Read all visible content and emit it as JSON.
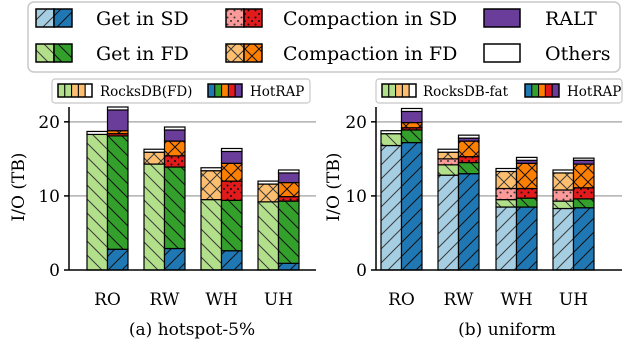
{
  "legend": {
    "items": [
      {
        "label": "Get in SD",
        "component": "get_sd"
      },
      {
        "label": "Compaction in SD",
        "component": "comp_sd"
      },
      {
        "label": "RALT",
        "component": "ralt"
      },
      {
        "label": "Get in FD",
        "component": "get_fd"
      },
      {
        "label": "Compaction in FD",
        "component": "comp_fd"
      },
      {
        "label": "Others",
        "component": "others"
      }
    ]
  },
  "colors": {
    "get_sd_light": "#a6cee3",
    "get_sd_dark": "#1f78b4",
    "get_fd_light": "#b2df8a",
    "get_fd_dark": "#33a02c",
    "comp_sd_light": "#fb9a99",
    "comp_sd_dark": "#e31a1c",
    "comp_fd_light": "#fdbf6f",
    "comp_fd_dark": "#ff7f00",
    "ralt": "#6a3d9a",
    "others": "#ffffff",
    "grid": "#b0b0b0"
  },
  "chart_data": [
    {
      "type": "bar",
      "subtitle": "(a) hotspot-5%",
      "ylabel": "I/O (TB)",
      "ylim": [
        0,
        22
      ],
      "yticks": [
        0,
        10,
        20
      ],
      "grid": true,
      "categories": [
        "RO",
        "RW",
        "WH",
        "UH"
      ],
      "legend": [
        {
          "label": "RocksDB(FD)",
          "shade": "light"
        },
        {
          "label": "HotRAP",
          "shade": "dark"
        }
      ],
      "series": [
        {
          "name": "RocksDB(FD)",
          "shade": "light",
          "stacks": [
            {
              "get_sd": 0,
              "get_fd": 18.3,
              "comp_sd": 0,
              "comp_fd": 0,
              "ralt": 0,
              "others": 0.4
            },
            {
              "get_sd": 0,
              "get_fd": 14.3,
              "comp_sd": 0,
              "comp_fd": 1.6,
              "ralt": 0,
              "others": 0.4
            },
            {
              "get_sd": 0,
              "get_fd": 9.5,
              "comp_sd": 0,
              "comp_fd": 3.9,
              "ralt": 0,
              "others": 0.4
            },
            {
              "get_sd": 0,
              "get_fd": 9.2,
              "comp_sd": 0,
              "comp_fd": 2.4,
              "ralt": 0,
              "others": 0.4
            }
          ]
        },
        {
          "name": "HotRAP",
          "shade": "dark",
          "stacks": [
            {
              "get_sd": 2.8,
              "get_fd": 15.3,
              "comp_sd": 0.3,
              "comp_fd": 0.4,
              "ralt": 2.8,
              "others": 0.4
            },
            {
              "get_sd": 2.9,
              "get_fd": 11.0,
              "comp_sd": 1.5,
              "comp_fd": 2.0,
              "ralt": 1.5,
              "others": 0.4
            },
            {
              "get_sd": 2.6,
              "get_fd": 6.8,
              "comp_sd": 2.6,
              "comp_fd": 2.4,
              "ralt": 1.6,
              "others": 0.4
            },
            {
              "get_sd": 0.9,
              "get_fd": 8.4,
              "comp_sd": 0.6,
              "comp_fd": 1.9,
              "ralt": 1.3,
              "others": 0.4
            }
          ]
        }
      ]
    },
    {
      "type": "bar",
      "subtitle": "(b) uniform",
      "ylabel": "I/O (TB)",
      "ylim": [
        0,
        22
      ],
      "yticks": [
        0,
        10,
        20
      ],
      "grid": true,
      "categories": [
        "RO",
        "RW",
        "WH",
        "UH"
      ],
      "legend": [
        {
          "label": "RocksDB-fat",
          "shade": "light"
        },
        {
          "label": "HotRAP",
          "shade": "dark"
        }
      ],
      "series": [
        {
          "name": "RocksDB-fat",
          "shade": "light",
          "stacks": [
            {
              "get_sd": 16.8,
              "get_fd": 1.6,
              "comp_sd": 0,
              "comp_fd": 0,
              "ralt": 0,
              "others": 0.4
            },
            {
              "get_sd": 12.8,
              "get_fd": 1.4,
              "comp_sd": 0.8,
              "comp_fd": 0.9,
              "ralt": 0,
              "others": 0.4
            },
            {
              "get_sd": 8.5,
              "get_fd": 1.0,
              "comp_sd": 1.5,
              "comp_fd": 2.3,
              "ralt": 0,
              "others": 0.4
            },
            {
              "get_sd": 8.3,
              "get_fd": 1.0,
              "comp_sd": 1.5,
              "comp_fd": 2.3,
              "ralt": 0,
              "others": 0.4
            }
          ]
        },
        {
          "name": "HotRAP",
          "shade": "dark",
          "stacks": [
            {
              "get_sd": 17.2,
              "get_fd": 1.7,
              "comp_sd": 0.3,
              "comp_fd": 0.7,
              "ralt": 1.5,
              "others": 0.4
            },
            {
              "get_sd": 13.0,
              "get_fd": 1.5,
              "comp_sd": 0.8,
              "comp_fd": 2.1,
              "ralt": 0.4,
              "others": 0.4
            },
            {
              "get_sd": 8.5,
              "get_fd": 1.2,
              "comp_sd": 1.3,
              "comp_fd": 3.4,
              "ralt": 0.4,
              "others": 0.4
            },
            {
              "get_sd": 8.4,
              "get_fd": 1.2,
              "comp_sd": 1.5,
              "comp_fd": 3.2,
              "ralt": 0.5,
              "others": 0.3
            }
          ]
        }
      ]
    }
  ]
}
